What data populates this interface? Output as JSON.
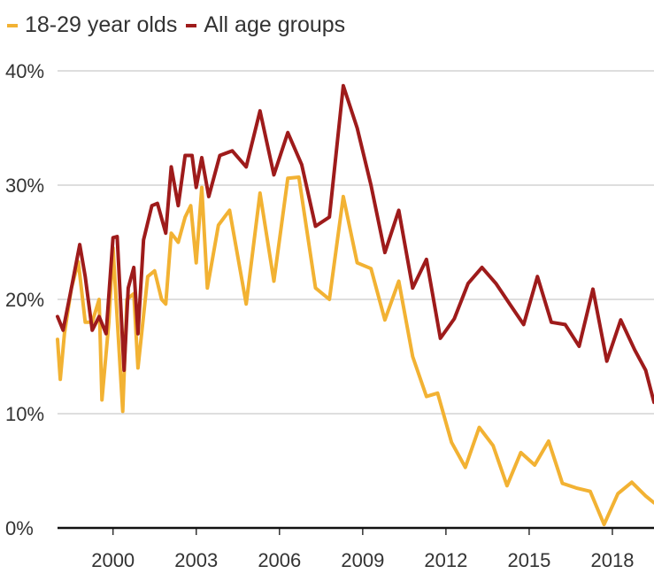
{
  "chart_data": {
    "type": "line",
    "ylim": [
      0,
      40
    ],
    "xlim": [
      1998.0,
      2019.5
    ],
    "y_ticks": [
      "0%",
      "10%",
      "20%",
      "30%",
      "40%"
    ],
    "x_ticks": [
      "2000",
      "2003",
      "2006",
      "2009",
      "2012",
      "2015",
      "2018"
    ],
    "legend_placement": "top-left",
    "grid": true,
    "series": [
      {
        "name": "18-29 year olds",
        "color": "#F2B233",
        "points": [
          [
            1998.0,
            16.5
          ],
          [
            1998.1,
            13.0
          ],
          [
            1998.25,
            17.0
          ],
          [
            1998.5,
            21.0
          ],
          [
            1998.75,
            23.3
          ],
          [
            1999.0,
            18.0
          ],
          [
            1999.25,
            18.0
          ],
          [
            1999.5,
            20.0
          ],
          [
            1999.6,
            11.2
          ],
          [
            1999.85,
            18.0
          ],
          [
            2000.0,
            24.5
          ],
          [
            2000.35,
            10.2
          ],
          [
            2000.5,
            20.0
          ],
          [
            2000.75,
            20.5
          ],
          [
            2000.9,
            14.0
          ],
          [
            2001.25,
            22.0
          ],
          [
            2001.5,
            22.5
          ],
          [
            2001.75,
            20.0
          ],
          [
            2001.9,
            19.6
          ],
          [
            2002.1,
            25.8
          ],
          [
            2002.35,
            25.0
          ],
          [
            2002.6,
            27.2
          ],
          [
            2002.8,
            28.2
          ],
          [
            2003.0,
            23.2
          ],
          [
            2003.2,
            29.8
          ],
          [
            2003.4,
            21.0
          ],
          [
            2003.8,
            26.5
          ],
          [
            2004.2,
            27.8
          ],
          [
            2004.8,
            19.6
          ],
          [
            2005.3,
            29.3
          ],
          [
            2005.8,
            21.6
          ],
          [
            2006.3,
            30.6
          ],
          [
            2006.7,
            30.7
          ],
          [
            2007.3,
            21.0
          ],
          [
            2007.8,
            20.0
          ],
          [
            2008.3,
            29.0
          ],
          [
            2008.8,
            23.2
          ],
          [
            2009.3,
            22.7
          ],
          [
            2009.8,
            18.2
          ],
          [
            2010.3,
            21.6
          ],
          [
            2010.8,
            15.0
          ],
          [
            2011.3,
            11.5
          ],
          [
            2011.7,
            11.8
          ],
          [
            2012.2,
            7.5
          ],
          [
            2012.7,
            5.3
          ],
          [
            2013.2,
            8.8
          ],
          [
            2013.7,
            7.2
          ],
          [
            2014.2,
            3.7
          ],
          [
            2014.7,
            6.6
          ],
          [
            2015.2,
            5.5
          ],
          [
            2015.7,
            7.6
          ],
          [
            2016.2,
            3.9
          ],
          [
            2016.7,
            3.5
          ],
          [
            2017.2,
            3.2
          ],
          [
            2017.7,
            0.3
          ],
          [
            2018.2,
            3.0
          ],
          [
            2018.7,
            4.0
          ],
          [
            2019.2,
            2.8
          ],
          [
            2019.5,
            2.2
          ]
        ]
      },
      {
        "name": "All age groups",
        "color": "#9E1B1B",
        "points": [
          [
            1998.0,
            18.5
          ],
          [
            1998.2,
            17.3
          ],
          [
            1998.5,
            21.0
          ],
          [
            1998.8,
            24.8
          ],
          [
            1999.0,
            22.0
          ],
          [
            1999.25,
            17.3
          ],
          [
            1999.5,
            18.5
          ],
          [
            1999.75,
            17.0
          ],
          [
            2000.0,
            25.4
          ],
          [
            2000.15,
            25.5
          ],
          [
            2000.4,
            13.8
          ],
          [
            2000.55,
            21.0
          ],
          [
            2000.75,
            22.8
          ],
          [
            2000.9,
            17.0
          ],
          [
            2001.1,
            25.2
          ],
          [
            2001.4,
            28.2
          ],
          [
            2001.6,
            28.4
          ],
          [
            2001.9,
            25.8
          ],
          [
            2002.1,
            31.6
          ],
          [
            2002.35,
            28.2
          ],
          [
            2002.6,
            32.6
          ],
          [
            2002.85,
            32.6
          ],
          [
            2003.0,
            29.8
          ],
          [
            2003.2,
            32.4
          ],
          [
            2003.45,
            29.0
          ],
          [
            2003.85,
            32.6
          ],
          [
            2004.3,
            33.0
          ],
          [
            2004.8,
            31.6
          ],
          [
            2005.3,
            36.5
          ],
          [
            2005.8,
            30.9
          ],
          [
            2006.3,
            34.6
          ],
          [
            2006.8,
            31.8
          ],
          [
            2007.3,
            26.4
          ],
          [
            2007.8,
            27.2
          ],
          [
            2008.3,
            38.7
          ],
          [
            2008.8,
            35.0
          ],
          [
            2009.3,
            30.0
          ],
          [
            2009.8,
            24.1
          ],
          [
            2010.3,
            27.8
          ],
          [
            2010.8,
            21.0
          ],
          [
            2011.3,
            23.5
          ],
          [
            2011.8,
            16.6
          ],
          [
            2012.3,
            18.3
          ],
          [
            2012.8,
            21.4
          ],
          [
            2013.3,
            22.8
          ],
          [
            2013.8,
            21.4
          ],
          [
            2014.3,
            19.6
          ],
          [
            2014.8,
            17.8
          ],
          [
            2015.3,
            22.0
          ],
          [
            2015.8,
            18.0
          ],
          [
            2016.3,
            17.8
          ],
          [
            2016.8,
            15.9
          ],
          [
            2017.3,
            20.9
          ],
          [
            2017.8,
            14.6
          ],
          [
            2018.3,
            18.2
          ],
          [
            2018.8,
            15.6
          ],
          [
            2019.2,
            13.8
          ],
          [
            2019.5,
            11.0
          ]
        ]
      }
    ]
  }
}
